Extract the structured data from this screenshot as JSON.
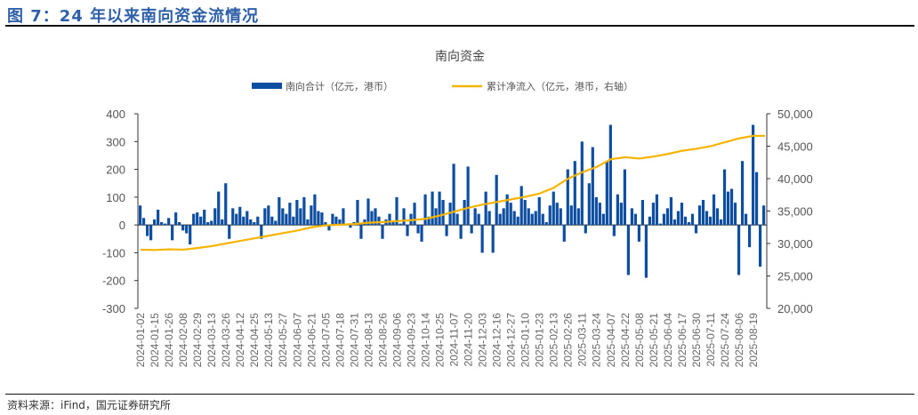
{
  "figure_title": "图 7：24 年以来南向资金流情况",
  "source": "资料来源：iFind，国元证券研究所",
  "chart_data": {
    "type": "bar+line",
    "title": "南向资金",
    "legend_position": "top",
    "colors": {
      "bars": "#0e4ea0",
      "line": "#f5b400"
    },
    "left_axis": {
      "ylim": [
        -300,
        400
      ],
      "ticks": [
        "400",
        "300",
        "200",
        "100",
        "0",
        "-100",
        "-200",
        "-300"
      ]
    },
    "right_axis": {
      "ylim": [
        20000,
        50000
      ],
      "ticks": [
        "50,000",
        "45,000",
        "40,000",
        "35,000",
        "30,000",
        "25,000",
        "20,000"
      ]
    },
    "x_tick_labels": [
      "2024-01-02",
      "2024-01-15",
      "2024-01-26",
      "2024-02-08",
      "2024-02-29",
      "2024-03-13",
      "2024-03-26",
      "2024-04-12",
      "2024-04-25",
      "2024-05-13",
      "2024-05-27",
      "2024-06-07",
      "2024-06-21",
      "2024-07-05",
      "2024-07-18",
      "2024-07-31",
      "2024-08-13",
      "2024-08-26",
      "2024-09-06",
      "2024-09-23",
      "2024-10-14",
      "2024-10-25",
      "2024-11-07",
      "2024-11-20",
      "2024-12-03",
      "2024-12-16",
      "2024-12-27",
      "2025-01-10",
      "2025-01-23",
      "2025-02-13",
      "2025-02-26",
      "2025-03-11",
      "2025-03-24",
      "2025-04-07",
      "2025-04-22",
      "2025-05-08",
      "2025-05-21",
      "2025-06-04",
      "2025-06-17",
      "2025-06-30",
      "2025-07-11",
      "2025-07-24",
      "2025-08-06",
      "2025-08-19"
    ],
    "series": [
      {
        "name": "南向合计（亿元，港币）",
        "axis": "left",
        "type": "bar",
        "values": [
          70,
          25,
          -40,
          -55,
          20,
          55,
          10,
          5,
          25,
          -55,
          45,
          10,
          -20,
          -30,
          -70,
          40,
          45,
          30,
          55,
          10,
          15,
          60,
          120,
          20,
          150,
          -50,
          60,
          40,
          65,
          30,
          50,
          20,
          10,
          30,
          -50,
          60,
          70,
          30,
          15,
          100,
          60,
          40,
          80,
          30,
          90,
          60,
          100,
          20,
          70,
          110,
          50,
          45,
          10,
          -20,
          40,
          30,
          20,
          60,
          5,
          -10,
          10,
          90,
          -50,
          20,
          95,
          50,
          60,
          30,
          -50,
          20,
          40,
          10,
          100,
          5,
          60,
          -40,
          40,
          80,
          -30,
          -60,
          110,
          30,
          120,
          60,
          120,
          90,
          -40,
          80,
          220,
          40,
          -50,
          90,
          210,
          -30,
          60,
          40,
          -100,
          120,
          50,
          -100,
          180,
          40,
          60,
          110,
          80,
          50,
          30,
          140,
          90,
          60,
          40,
          50,
          100,
          40,
          10,
          70,
          120,
          80,
          60,
          -60,
          200,
          70,
          230,
          60,
          300,
          -30,
          150,
          280,
          100,
          80,
          40,
          230,
          360,
          -40,
          110,
          80,
          200,
          -180,
          60,
          40,
          -60,
          90,
          -190,
          30,
          80,
          110,
          5,
          40,
          60,
          100,
          20,
          50,
          80,
          30,
          10,
          40,
          -30,
          70,
          90,
          50,
          30,
          110,
          60,
          20,
          200,
          120,
          130,
          80,
          -180,
          230,
          40,
          -80,
          360,
          190,
          -150,
          70
        ]
      },
      {
        "name": "累计净流入（亿元，港币，右轴）",
        "axis": "right",
        "type": "line",
        "values": [
          29050,
          29000,
          29100,
          29050,
          29300,
          29600,
          30000,
          30400,
          30800,
          31200,
          31600,
          32000,
          32500,
          32800,
          32900,
          33000,
          33200,
          33300,
          33450,
          33600,
          33800,
          34300,
          34900,
          35500,
          36000,
          36400,
          36800,
          37200,
          37700,
          38600,
          40000,
          41000,
          41800,
          43000,
          43300,
          43100,
          43400,
          43800,
          44300,
          44600,
          45000,
          45600,
          46200,
          46600
        ]
      }
    ]
  }
}
